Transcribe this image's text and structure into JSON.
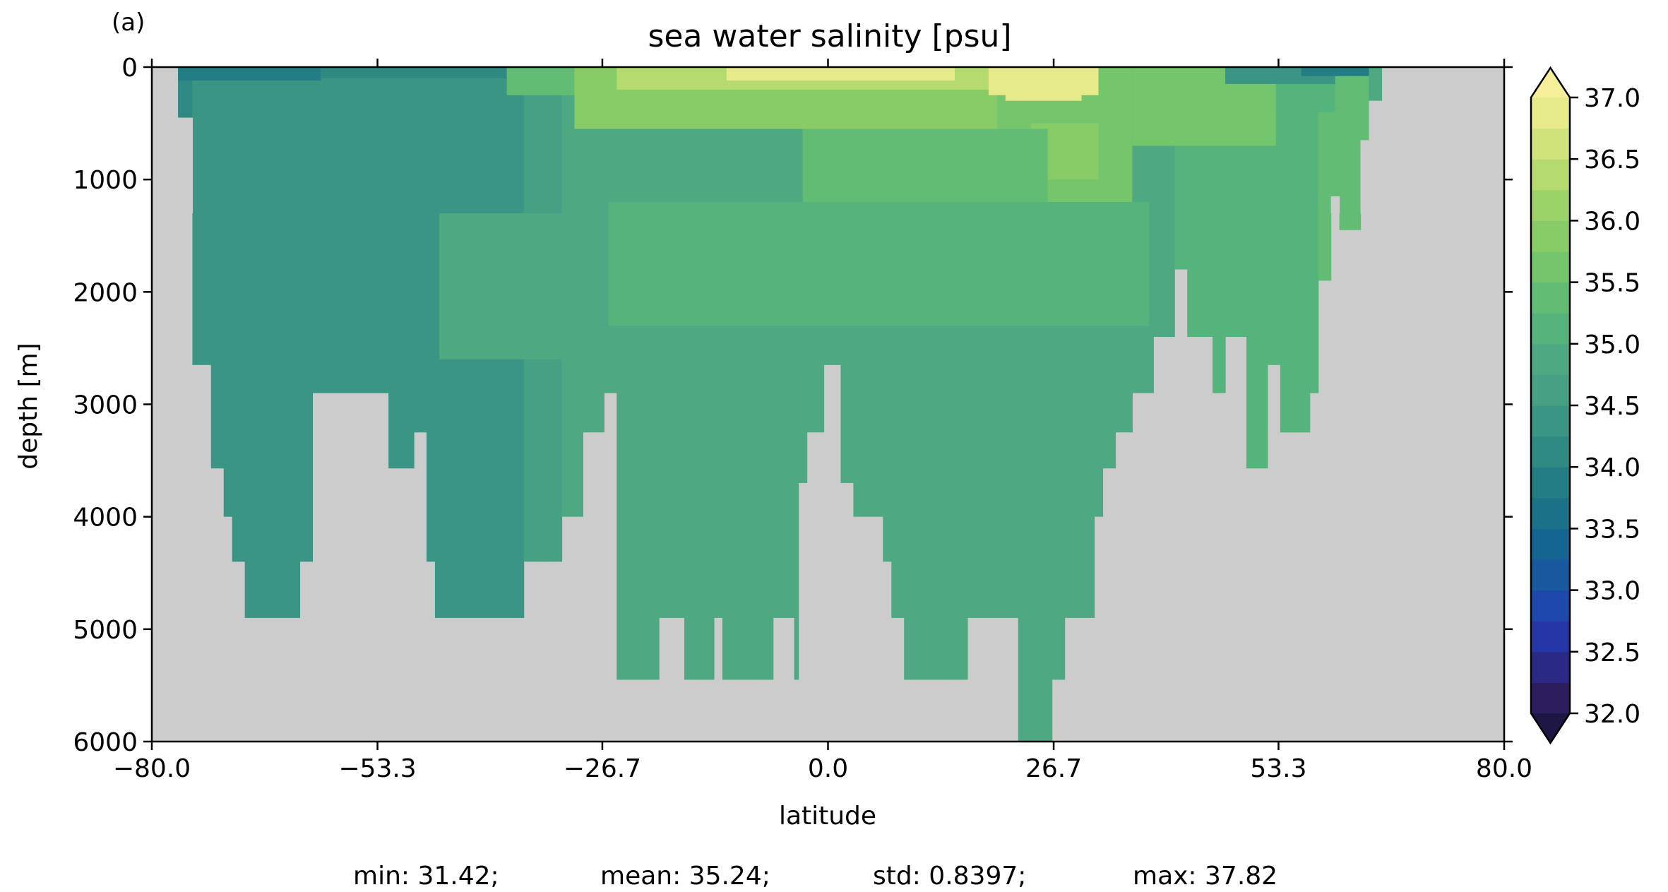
{
  "figure": {
    "panel_label": "(a)",
    "title": "sea water salinity [psu]",
    "stats": {
      "min_text": "min: 31.42;",
      "mean_text": "mean: 35.24;",
      "std_text": "std: 0.8397;",
      "max_text": "max: 37.82"
    }
  },
  "chart_data": {
    "type": "heatmap",
    "title": "sea water salinity [psu]",
    "xlabel": "latitude",
    "ylabel": "depth [m]",
    "xlim": [
      -80,
      80
    ],
    "ylim": [
      6000,
      0
    ],
    "x_ticks": [
      -80,
      -53.3,
      -26.7,
      0,
      26.7,
      53.3,
      80
    ],
    "x_tick_labels": [
      "−80.0",
      "−53.3",
      "−26.7",
      "0.0",
      "26.7",
      "53.3",
      "80.0"
    ],
    "y_ticks": [
      0,
      1000,
      2000,
      3000,
      4000,
      5000,
      6000
    ],
    "y_tick_labels": [
      "0",
      "1000",
      "2000",
      "3000",
      "4000",
      "5000",
      "6000"
    ],
    "land_color": "#cccccc",
    "colorbar": {
      "min": 32.0,
      "max": 37.0,
      "step": 0.25,
      "extend": "both",
      "ticks": [
        32.0,
        32.5,
        33.0,
        33.5,
        34.0,
        34.5,
        35.0,
        35.5,
        36.0,
        36.5,
        37.0
      ],
      "tick_labels": [
        "32.0",
        "32.5",
        "33.0",
        "33.5",
        "34.0",
        "34.5",
        "35.0",
        "35.5",
        "36.0",
        "36.5",
        "37.0"
      ],
      "colors": [
        "#2c1e5e",
        "#2a2a86",
        "#2536a6",
        "#1f48ad",
        "#17589f",
        "#156593",
        "#1a7188",
        "#237d84",
        "#2f8a83",
        "#3b9584",
        "#46a084",
        "#4ea982",
        "#55b47c",
        "#62bc74",
        "#74c56b",
        "#87cc67",
        "#9cd369",
        "#b5db6e",
        "#d0e37b",
        "#e6ea8a"
      ],
      "under_color": "#1e1744",
      "over_color": "#f7ee99"
    },
    "ocean_columns": [
      {
        "lat": [
          -76.9,
          -75.2
        ],
        "bottom": 450,
        "salinity": 34.0
      },
      {
        "lat": [
          -75.2,
          -73.0
        ],
        "bottom": 2650,
        "salinity": 34.25
      },
      {
        "lat": [
          -73.0,
          -71.5
        ],
        "bottom": 3570,
        "salinity": 34.25
      },
      {
        "lat": [
          -71.5,
          -70.5
        ],
        "bottom": 4000,
        "salinity": 34.25
      },
      {
        "lat": [
          -70.5,
          -69.0
        ],
        "bottom": 4400,
        "salinity": 34.25
      },
      {
        "lat": [
          -69.0,
          -62.5
        ],
        "bottom": 4900,
        "salinity": 34.25
      },
      {
        "lat": [
          -62.5,
          -61.0
        ],
        "bottom": 4400,
        "salinity": 34.25
      },
      {
        "lat": [
          -61.0,
          -52.0
        ],
        "bottom": 2900,
        "salinity": 34.25
      },
      {
        "lat": [
          -52.0,
          -49.0
        ],
        "bottom": 3570,
        "salinity": 34.25
      },
      {
        "lat": [
          -49.0,
          -47.5
        ],
        "bottom": 3250,
        "salinity": 34.25
      },
      {
        "lat": [
          -47.5,
          -46.5
        ],
        "bottom": 4400,
        "salinity": 34.25
      },
      {
        "lat": [
          -46.5,
          -36.0
        ],
        "bottom": 4900,
        "salinity": 34.25
      },
      {
        "lat": [
          -36.0,
          -33.5
        ],
        "bottom": 4400,
        "salinity": 34.5
      },
      {
        "lat": [
          -33.5,
          -31.5
        ],
        "bottom": 4400,
        "salinity": 34.5
      },
      {
        "lat": [
          -31.5,
          -29.0
        ],
        "bottom": 4000,
        "salinity": 34.75
      },
      {
        "lat": [
          -29.0,
          -26.5
        ],
        "bottom": 3250,
        "salinity": 34.75
      },
      {
        "lat": [
          -26.5,
          -25.0
        ],
        "bottom": 2900,
        "salinity": 34.75
      },
      {
        "lat": [
          -25.0,
          -20.0
        ],
        "bottom": 5450,
        "salinity": 34.75
      },
      {
        "lat": [
          -20.0,
          -17.0
        ],
        "bottom": 4900,
        "salinity": 34.75
      },
      {
        "lat": [
          -17.0,
          -13.5
        ],
        "bottom": 5450,
        "salinity": 34.75
      },
      {
        "lat": [
          -13.5,
          -12.5
        ],
        "bottom": 4900,
        "salinity": 34.75
      },
      {
        "lat": [
          -12.5,
          -6.5
        ],
        "bottom": 5450,
        "salinity": 34.75
      },
      {
        "lat": [
          -6.5,
          -4.0
        ],
        "bottom": 4900,
        "salinity": 34.75
      },
      {
        "lat": [
          -4.0,
          -3.5
        ],
        "bottom": 5450,
        "salinity": 34.75
      },
      {
        "lat": [
          -3.5,
          -2.5
        ],
        "bottom": 3700,
        "salinity": 34.75
      },
      {
        "lat": [
          -2.5,
          -0.5
        ],
        "bottom": 3250,
        "salinity": 34.75
      },
      {
        "lat": [
          -0.5,
          1.5
        ],
        "bottom": 2650,
        "salinity": 34.75
      },
      {
        "lat": [
          1.5,
          3.0
        ],
        "bottom": 3700,
        "salinity": 34.75
      },
      {
        "lat": [
          3.0,
          6.5
        ],
        "bottom": 4000,
        "salinity": 34.75
      },
      {
        "lat": [
          6.5,
          7.5
        ],
        "bottom": 4400,
        "salinity": 34.75
      },
      {
        "lat": [
          7.5,
          9.0
        ],
        "bottom": 4900,
        "salinity": 34.75
      },
      {
        "lat": [
          9.0,
          16.5
        ],
        "bottom": 5450,
        "salinity": 34.75
      },
      {
        "lat": [
          16.5,
          22.5
        ],
        "bottom": 4900,
        "salinity": 34.75
      },
      {
        "lat": [
          22.5,
          26.5
        ],
        "bottom": 6000,
        "salinity": 34.75
      },
      {
        "lat": [
          26.5,
          28.0
        ],
        "bottom": 5450,
        "salinity": 34.75
      },
      {
        "lat": [
          28.0,
          31.5
        ],
        "bottom": 4900,
        "salinity": 34.75
      },
      {
        "lat": [
          31.5,
          32.5
        ],
        "bottom": 4000,
        "salinity": 34.75
      },
      {
        "lat": [
          32.5,
          34.0
        ],
        "bottom": 3570,
        "salinity": 34.75
      },
      {
        "lat": [
          34.0,
          36.0
        ],
        "bottom": 3250,
        "salinity": 34.75
      },
      {
        "lat": [
          36.0,
          38.5
        ],
        "bottom": 2900,
        "salinity": 34.75
      },
      {
        "lat": [
          38.5,
          41.0
        ],
        "bottom": 2400,
        "salinity": 34.75
      },
      {
        "lat": [
          41.0,
          42.5
        ],
        "bottom": 1800,
        "salinity": 35.0
      },
      {
        "lat": [
          42.5,
          45.5
        ],
        "bottom": 2400,
        "salinity": 35.0
      },
      {
        "lat": [
          45.5,
          47.0
        ],
        "bottom": 2900,
        "salinity": 35.0
      },
      {
        "lat": [
          47.0,
          49.5
        ],
        "bottom": 2400,
        "salinity": 35.0
      },
      {
        "lat": [
          49.5,
          52.0
        ],
        "bottom": 3570,
        "salinity": 35.0
      },
      {
        "lat": [
          52.0,
          53.5
        ],
        "bottom": 2650,
        "salinity": 35.0
      },
      {
        "lat": [
          53.5,
          57.0
        ],
        "bottom": 3250,
        "salinity": 35.0
      },
      {
        "lat": [
          57.0,
          58.0
        ],
        "bottom": 2900,
        "salinity": 35.0
      },
      {
        "lat": [
          58.0,
          59.5
        ],
        "bottom": 1900,
        "salinity": 35.25
      },
      {
        "lat": [
          59.5,
          60.5
        ],
        "bottom": 1150,
        "salinity": 35.25
      },
      {
        "lat": [
          60.5,
          63.0
        ],
        "bottom": 1450,
        "salinity": 35.25
      },
      {
        "lat": [
          63.0,
          64.0
        ],
        "bottom": 650,
        "salinity": 35.25
      },
      {
        "lat": [
          64.0,
          65.5
        ],
        "bottom": 300,
        "salinity": 34.75
      }
    ],
    "surface_layers": [
      {
        "lat": [
          -76.9,
          -60.0
        ],
        "depth": [
          0,
          120
        ],
        "salinity": 33.75
      },
      {
        "lat": [
          -60.0,
          -38.0
        ],
        "depth": [
          0,
          100
        ],
        "salinity": 34.0
      },
      {
        "lat": [
          -38.0,
          -30.0
        ],
        "depth": [
          0,
          250
        ],
        "salinity": 35.25
      },
      {
        "lat": [
          -30.0,
          26.0
        ],
        "depth": [
          0,
          550
        ],
        "salinity": 35.75
      },
      {
        "lat": [
          -25.0,
          20.0
        ],
        "depth": [
          0,
          200
        ],
        "salinity": 36.25
      },
      {
        "lat": [
          -12.0,
          15.0
        ],
        "depth": [
          0,
          120
        ],
        "salinity": 36.75
      },
      {
        "lat": [
          20.0,
          36.0
        ],
        "depth": [
          0,
          1300
        ],
        "salinity": 35.5
      },
      {
        "lat": [
          24.0,
          32.0
        ],
        "depth": [
          500,
          1000
        ],
        "salinity": 35.75
      },
      {
        "lat": [
          19.0,
          32.0
        ],
        "depth": [
          0,
          250
        ],
        "salinity": 36.75
      },
      {
        "lat": [
          21.0,
          30.0
        ],
        "depth": [
          0,
          300
        ],
        "salinity": 37.0
      },
      {
        "lat": [
          36.0,
          53.0
        ],
        "depth": [
          0,
          700
        ],
        "salinity": 35.5
      },
      {
        "lat": [
          53.0,
          60.0
        ],
        "depth": [
          0,
          400
        ],
        "salinity": 35.0
      },
      {
        "lat": [
          47.0,
          60.0
        ],
        "depth": [
          0,
          150
        ],
        "salinity": 34.25
      },
      {
        "lat": [
          56.0,
          64.0
        ],
        "depth": [
          0,
          80
        ],
        "salinity": 33.75
      },
      {
        "lat": [
          -3.0,
          26.0
        ],
        "depth": [
          550,
          1200
        ],
        "salinity": 35.25
      },
      {
        "lat": [
          -26.0,
          38.0
        ],
        "depth": [
          1200,
          2300
        ],
        "salinity": 35.0
      },
      {
        "lat": [
          -46.0,
          -26.0
        ],
        "depth": [
          1300,
          2600
        ],
        "salinity": 34.75
      }
    ]
  }
}
